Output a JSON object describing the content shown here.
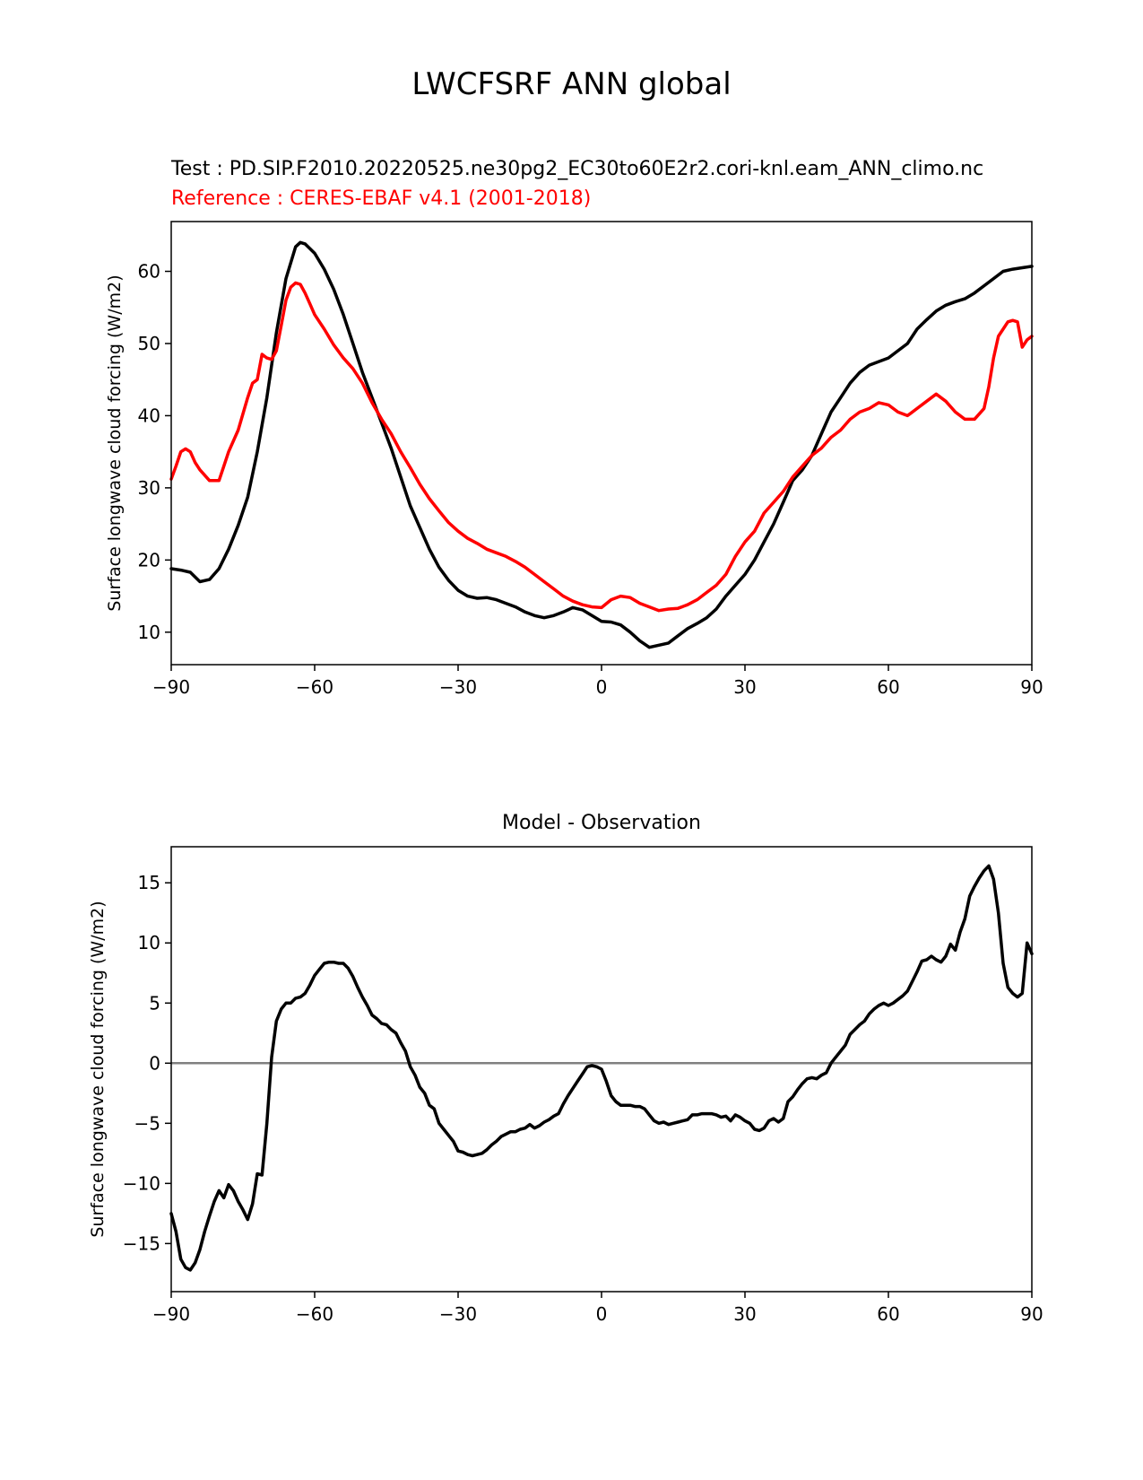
{
  "figure": {
    "title": "LWCFSRF ANN global",
    "test_label": "Test : PD.SIP.F2010.20220525.ne30pg2_EC30to60E2r2.cori-knl.eam_ANN_climo.nc",
    "reference_label": "Reference : CERES-EBAF v4.1 (2001-2018)"
  },
  "chart_data": [
    {
      "type": "line",
      "title": "",
      "xlabel": "",
      "ylabel": "Surface longwave cloud forcing (W/m2)",
      "xlim": [
        -90,
        90
      ],
      "ylim": [
        5.5,
        66.9
      ],
      "xticks": [
        -90,
        -60,
        -30,
        0,
        30,
        60,
        90
      ],
      "xtick_labels": [
        "−90",
        "−60",
        "−30",
        "0",
        "30",
        "60",
        "90"
      ],
      "yticks": [
        10,
        20,
        30,
        40,
        50,
        60
      ],
      "ytick_labels": [
        "10",
        "20",
        "30",
        "40",
        "50",
        "60"
      ],
      "grid": false,
      "series": [
        {
          "name": "",
          "color": "#000000",
          "x": [
            -90,
            -88,
            -86,
            -84,
            -82,
            -80,
            -78,
            -76,
            -74,
            -72,
            -70,
            -68,
            -66,
            -64,
            -63,
            -62,
            -60,
            -58,
            -56,
            -54,
            -52,
            -50,
            -48,
            -46,
            -44,
            -42,
            -40,
            -38,
            -36,
            -34,
            -32,
            -30,
            -28,
            -26,
            -24,
            -22,
            -20,
            -18,
            -16,
            -14,
            -12,
            -10,
            -8,
            -6,
            -4,
            -2,
            0,
            2,
            4,
            6,
            8,
            10,
            12,
            14,
            16,
            18,
            20,
            22,
            24,
            26,
            28,
            30,
            32,
            34,
            36,
            38,
            40,
            42,
            44,
            46,
            48,
            50,
            52,
            54,
            56,
            58,
            60,
            62,
            64,
            66,
            68,
            70,
            72,
            74,
            76,
            78,
            80,
            82,
            84,
            86,
            88,
            90
          ],
          "y": [
            18.8,
            18.6,
            18.3,
            17.0,
            17.3,
            18.8,
            21.5,
            24.8,
            28.7,
            35.0,
            42.5,
            51.5,
            59.0,
            63.4,
            64.0,
            63.8,
            62.5,
            60.3,
            57.5,
            54.0,
            50.0,
            46.0,
            42.5,
            39.0,
            35.5,
            31.5,
            27.5,
            24.5,
            21.5,
            19.0,
            17.2,
            15.8,
            15.0,
            14.7,
            14.8,
            14.5,
            14.0,
            13.5,
            12.8,
            12.3,
            12.0,
            12.3,
            12.8,
            13.4,
            13.1,
            12.3,
            11.5,
            11.4,
            11.0,
            10.0,
            8.8,
            7.9,
            8.2,
            8.5,
            9.5,
            10.5,
            11.2,
            12.0,
            13.2,
            15.0,
            16.5,
            18.0,
            20.0,
            22.5,
            25.0,
            28.0,
            31.0,
            32.5,
            34.5,
            37.5,
            40.5,
            42.5,
            44.5,
            46.0,
            47.0,
            47.5,
            48.0,
            49.0,
            50.0,
            52.0,
            53.3,
            54.5,
            55.3,
            55.8,
            56.2,
            57.0,
            58.0,
            59.0,
            60.0,
            60.3,
            60.5,
            60.7
          ]
        },
        {
          "name": "",
          "color": "#ff0000",
          "x": [
            -90,
            -89,
            -88,
            -87,
            -86,
            -85,
            -84,
            -82,
            -80,
            -79,
            -78,
            -76,
            -74,
            -73,
            -72,
            -71,
            -70,
            -69,
            -68,
            -67,
            -66,
            -65,
            -64,
            -63,
            -62,
            -61,
            -60,
            -58,
            -56,
            -54,
            -52,
            -50,
            -48,
            -46,
            -44,
            -42,
            -40,
            -38,
            -36,
            -34,
            -32,
            -30,
            -28,
            -26,
            -24,
            -22,
            -20,
            -18,
            -16,
            -14,
            -12,
            -10,
            -8,
            -6,
            -4,
            -2,
            0,
            2,
            4,
            6,
            8,
            10,
            12,
            14,
            16,
            18,
            20,
            22,
            24,
            26,
            28,
            30,
            32,
            34,
            36,
            38,
            40,
            42,
            44,
            46,
            48,
            50,
            52,
            54,
            56,
            58,
            60,
            62,
            64,
            66,
            68,
            70,
            72,
            74,
            76,
            78,
            80,
            81,
            82,
            83,
            84,
            85,
            86,
            87,
            88,
            89,
            90
          ],
          "y": [
            31.2,
            33.0,
            35.0,
            35.4,
            35.0,
            33.5,
            32.5,
            31.0,
            31.0,
            33.0,
            35.0,
            38.0,
            42.5,
            44.5,
            45.0,
            48.5,
            48.0,
            47.8,
            49.0,
            52.5,
            56.0,
            57.8,
            58.4,
            58.2,
            57.0,
            55.5,
            54.0,
            52.0,
            49.8,
            48.0,
            46.5,
            44.5,
            41.8,
            39.5,
            37.5,
            35.0,
            32.8,
            30.5,
            28.5,
            26.8,
            25.2,
            24.0,
            23.0,
            22.3,
            21.5,
            21.0,
            20.5,
            19.8,
            19.0,
            18.0,
            17.0,
            16.0,
            15.0,
            14.3,
            13.8,
            13.5,
            13.4,
            14.5,
            15.0,
            14.8,
            14.0,
            13.5,
            13.0,
            13.2,
            13.3,
            13.8,
            14.5,
            15.5,
            16.5,
            18.0,
            20.5,
            22.5,
            24.0,
            26.5,
            28.0,
            29.5,
            31.5,
            33.0,
            34.5,
            35.5,
            37.0,
            38.0,
            39.5,
            40.5,
            41.0,
            41.8,
            41.5,
            40.5,
            40.0,
            41.0,
            42.0,
            43.0,
            42.0,
            40.5,
            39.5,
            39.5,
            41.0,
            44.0,
            48.0,
            51.0,
            52.0,
            53.0,
            53.2,
            53.0,
            49.5,
            50.5,
            51.0
          ]
        }
      ]
    },
    {
      "type": "line",
      "title": "Model - Observation",
      "xlabel": "",
      "ylabel": "Surface longwave cloud forcing (W/m2)",
      "xlim": [
        -90,
        90
      ],
      "ylim": [
        -19,
        18
      ],
      "xticks": [
        -90,
        -60,
        -30,
        0,
        30,
        60,
        90
      ],
      "xtick_labels": [
        "−90",
        "−60",
        "−30",
        "0",
        "30",
        "60",
        "90"
      ],
      "yticks": [
        -15,
        -10,
        -5,
        0,
        5,
        10,
        15
      ],
      "ytick_labels": [
        "−15",
        "−10",
        "−5",
        "0",
        "5",
        "10",
        "15"
      ],
      "grid": false,
      "hline": {
        "y": 0,
        "color": "#808080"
      },
      "series": [
        {
          "name": "",
          "color": "#000000",
          "x": [
            -90,
            -89,
            -88,
            -87,
            -86,
            -85,
            -84,
            -83,
            -82,
            -81,
            -80,
            -79,
            -78,
            -77,
            -76,
            -75,
            -74,
            -73,
            -72,
            -71,
            -70,
            -69,
            -68,
            -67,
            -66,
            -65,
            -64,
            -63,
            -62,
            -61,
            -60,
            -59,
            -58,
            -57,
            -56,
            -55,
            -54,
            -53,
            -52,
            -51,
            -50,
            -49,
            -48,
            -47,
            -46,
            -45,
            -44,
            -43,
            -42,
            -41,
            -40,
            -39,
            -38,
            -37,
            -36,
            -35,
            -34,
            -33,
            -32,
            -31,
            -30,
            -29,
            -28,
            -27,
            -26,
            -25,
            -24,
            -23,
            -22,
            -21,
            -20,
            -19,
            -18,
            -17,
            -16,
            -15,
            -14,
            -13,
            -12,
            -11,
            -10,
            -9,
            -8,
            -7,
            -6,
            -5,
            -4,
            -3,
            -2,
            -1,
            0,
            1,
            2,
            3,
            4,
            5,
            6,
            7,
            8,
            9,
            10,
            11,
            12,
            13,
            14,
            15,
            16,
            17,
            18,
            19,
            20,
            21,
            22,
            23,
            24,
            25,
            26,
            27,
            28,
            29,
            30,
            31,
            32,
            33,
            34,
            35,
            36,
            37,
            38,
            39,
            40,
            41,
            42,
            43,
            44,
            45,
            46,
            47,
            48,
            49,
            50,
            51,
            52,
            53,
            54,
            55,
            56,
            57,
            58,
            59,
            60,
            61,
            62,
            63,
            64,
            65,
            66,
            67,
            68,
            69,
            70,
            71,
            72,
            73,
            74,
            75,
            76,
            77,
            78,
            79,
            80,
            81,
            82,
            83,
            84,
            85,
            86,
            87,
            88,
            89,
            90
          ],
          "y": [
            -12.5,
            -14.0,
            -16.3,
            -17.0,
            -17.2,
            -16.6,
            -15.5,
            -14.0,
            -12.7,
            -11.5,
            -10.6,
            -11.2,
            -10.1,
            -10.6,
            -11.5,
            -12.2,
            -13.0,
            -11.7,
            -9.2,
            -9.3,
            -5.0,
            0.5,
            3.5,
            4.5,
            5.0,
            5.0,
            5.4,
            5.5,
            5.8,
            6.5,
            7.3,
            7.8,
            8.3,
            8.4,
            8.4,
            8.3,
            8.3,
            7.9,
            7.2,
            6.3,
            5.5,
            4.8,
            4.0,
            3.7,
            3.3,
            3.2,
            2.8,
            2.5,
            1.7,
            1.0,
            -0.3,
            -1.0,
            -2.0,
            -2.5,
            -3.5,
            -3.8,
            -5.0,
            -5.5,
            -6.0,
            -6.5,
            -7.3,
            -7.4,
            -7.6,
            -7.7,
            -7.6,
            -7.5,
            -7.2,
            -6.8,
            -6.5,
            -6.1,
            -5.9,
            -5.7,
            -5.7,
            -5.5,
            -5.4,
            -5.1,
            -5.4,
            -5.2,
            -4.9,
            -4.7,
            -4.4,
            -4.2,
            -3.4,
            -2.7,
            -2.1,
            -1.5,
            -0.9,
            -0.3,
            -0.2,
            -0.3,
            -0.5,
            -1.5,
            -2.7,
            -3.2,
            -3.5,
            -3.5,
            -3.5,
            -3.6,
            -3.6,
            -3.8,
            -4.3,
            -4.8,
            -5.0,
            -4.9,
            -5.1,
            -5.0,
            -4.9,
            -4.8,
            -4.7,
            -4.3,
            -4.3,
            -4.2,
            -4.2,
            -4.2,
            -4.3,
            -4.5,
            -4.4,
            -4.8,
            -4.3,
            -4.5,
            -4.8,
            -5.0,
            -5.5,
            -5.6,
            -5.4,
            -4.8,
            -4.6,
            -4.9,
            -4.6,
            -3.2,
            -2.8,
            -2.2,
            -1.7,
            -1.3,
            -1.2,
            -1.3,
            -1.0,
            -0.8,
            0.0,
            0.5,
            1.0,
            1.5,
            2.4,
            2.8,
            3.2,
            3.5,
            4.1,
            4.5,
            4.8,
            5.0,
            4.8,
            5.0,
            5.3,
            5.6,
            6.0,
            6.8,
            7.6,
            8.5,
            8.6,
            8.9,
            8.6,
            8.4,
            8.9,
            9.9,
            9.4,
            10.9,
            12.0,
            13.9,
            14.7,
            15.4,
            16.0,
            16.4,
            15.3,
            12.5,
            8.3,
            6.3,
            5.8,
            5.5,
            5.8,
            10.0,
            9.1
          ]
        }
      ]
    }
  ]
}
